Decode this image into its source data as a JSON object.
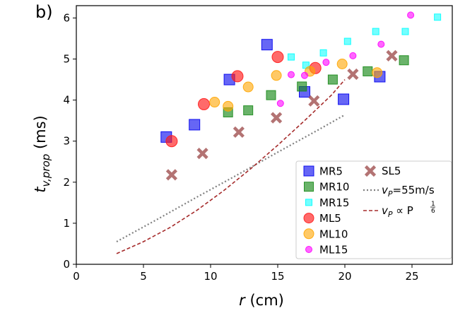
{
  "panel_label": "b)",
  "chart_data": {
    "type": "scatter",
    "xlabel": "r (cm)",
    "ylabel": "t_v,prop (ms)",
    "xlim": [
      0,
      28
    ],
    "ylim": [
      0,
      6.3
    ],
    "xticks": [
      0,
      5,
      10,
      15,
      20,
      25
    ],
    "yticks": [
      0,
      1,
      2,
      3,
      4,
      5,
      6
    ],
    "grid": false,
    "legend_position": "lower-right",
    "series": [
      {
        "name": "MR5",
        "marker": "square",
        "color": "#0000ee",
        "opacity": 0.6,
        "size": 15,
        "points": [
          [
            6.7,
            3.1
          ],
          [
            8.8,
            3.4
          ],
          [
            11.4,
            4.5
          ],
          [
            14.2,
            5.35
          ],
          [
            17.0,
            4.2
          ],
          [
            19.9,
            4.02
          ],
          [
            22.6,
            4.57
          ]
        ]
      },
      {
        "name": "MR10",
        "marker": "square",
        "color": "#1a8a1a",
        "opacity": 0.65,
        "size": 13,
        "points": [
          [
            11.3,
            3.7
          ],
          [
            12.8,
            3.75
          ],
          [
            14.5,
            4.12
          ],
          [
            16.8,
            4.33
          ],
          [
            19.1,
            4.5
          ],
          [
            21.7,
            4.7
          ],
          [
            24.4,
            4.97
          ]
        ]
      },
      {
        "name": "MR15",
        "marker": "square",
        "color": "#00ffff",
        "opacity": 0.55,
        "size": 9,
        "points": [
          [
            16.0,
            5.05
          ],
          [
            17.1,
            4.85
          ],
          [
            18.4,
            5.15
          ],
          [
            20.2,
            5.43
          ],
          [
            22.3,
            5.67
          ],
          [
            24.5,
            5.67
          ],
          [
            26.9,
            6.02
          ]
        ]
      },
      {
        "name": "ML5",
        "marker": "circle",
        "color": "#ff1a1a",
        "opacity": 0.65,
        "size": 16,
        "points": [
          [
            7.1,
            3.0
          ],
          [
            9.5,
            3.9
          ],
          [
            12.0,
            4.58
          ],
          [
            15.0,
            5.05
          ],
          [
            17.8,
            4.78
          ]
        ]
      },
      {
        "name": "ML10",
        "marker": "circle",
        "color": "#ffa500",
        "opacity": 0.6,
        "size": 14,
        "points": [
          [
            10.3,
            3.95
          ],
          [
            11.3,
            3.85
          ],
          [
            12.8,
            4.32
          ],
          [
            14.9,
            4.6
          ],
          [
            17.4,
            4.7
          ],
          [
            19.8,
            4.88
          ],
          [
            22.4,
            4.67
          ]
        ]
      },
      {
        "name": "ML15",
        "marker": "circle",
        "color": "#ff00ff",
        "opacity": 0.6,
        "size": 9,
        "points": [
          [
            15.2,
            3.92
          ],
          [
            16.0,
            4.62
          ],
          [
            17.0,
            4.6
          ],
          [
            18.6,
            4.92
          ],
          [
            20.6,
            5.08
          ],
          [
            22.7,
            5.36
          ],
          [
            24.9,
            6.07
          ]
        ]
      },
      {
        "name": "SL5",
        "marker": "x",
        "color": "#a05050",
        "opacity": 0.8,
        "size": 13,
        "points": [
          [
            7.1,
            2.18
          ],
          [
            9.4,
            2.7
          ],
          [
            12.1,
            3.22
          ],
          [
            14.9,
            3.57
          ],
          [
            17.7,
            3.98
          ],
          [
            20.6,
            4.63
          ],
          [
            23.5,
            5.08
          ]
        ]
      }
    ],
    "lines": [
      {
        "name": "v_P=55m/s",
        "style": "dotted",
        "color": "#808080",
        "points": [
          [
            3.0,
            0.55
          ],
          [
            6.0,
            1.09
          ],
          [
            9.0,
            1.64
          ],
          [
            12.0,
            2.18
          ],
          [
            15.0,
            2.73
          ],
          [
            18.0,
            3.27
          ],
          [
            20.0,
            3.64
          ]
        ]
      },
      {
        "name": "v_P ∝ P^(1/6)",
        "style": "dashed",
        "color": "#a52a2a",
        "points": [
          [
            3.0,
            0.26
          ],
          [
            5.0,
            0.55
          ],
          [
            7.0,
            0.9
          ],
          [
            9.0,
            1.32
          ],
          [
            11.0,
            1.8
          ],
          [
            13.0,
            2.33
          ],
          [
            15.0,
            2.9
          ],
          [
            17.0,
            3.5
          ],
          [
            19.0,
            4.12
          ],
          [
            20.0,
            4.5
          ]
        ]
      }
    ]
  },
  "legend": {
    "col1": [
      {
        "label": "MR5",
        "series": "MR5"
      },
      {
        "label": "MR10",
        "series": "MR10"
      },
      {
        "label": "MR15",
        "series": "MR15"
      },
      {
        "label": "ML5",
        "series": "ML5"
      },
      {
        "label": "ML10",
        "series": "ML10"
      },
      {
        "label": "ML15",
        "series": "ML15"
      }
    ],
    "col2": [
      {
        "label": "SL5",
        "series": "SL5"
      },
      {
        "label_var": "v",
        "label_sub": "P",
        "label_rest": "=55m/s",
        "line": "v_P=55m/s"
      },
      {
        "label_var": "v",
        "label_sub": "P",
        "label_rest": " ∝ P",
        "label_sup_num": "1",
        "label_sup_den": "6",
        "line": "v_P ∝ P^(1/6)"
      }
    ]
  },
  "axis_text": {
    "xlabel_var": "r",
    "xlabel_unit": " (cm)",
    "ylabel_var": "t",
    "ylabel_sub": "v,prop",
    "ylabel_unit": " (ms)"
  }
}
